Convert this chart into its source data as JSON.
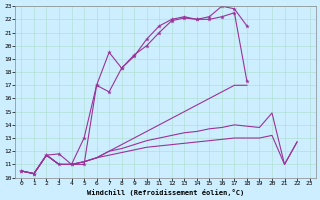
{
  "xlabel": "Windchill (Refroidissement éolien,°C)",
  "background_color": "#cceeff",
  "line_color": "#993399",
  "xlim": [
    -0.5,
    23.5
  ],
  "ylim": [
    10,
    23
  ],
  "xticks": [
    0,
    1,
    2,
    3,
    4,
    5,
    6,
    7,
    8,
    9,
    10,
    11,
    12,
    13,
    14,
    15,
    16,
    17,
    18,
    19,
    20,
    21,
    22,
    23
  ],
  "yticks": [
    10,
    11,
    12,
    13,
    14,
    15,
    16,
    17,
    18,
    19,
    20,
    21,
    22,
    23
  ],
  "series_marked": [
    {
      "x": [
        0,
        1,
        2,
        3,
        4,
        5,
        6,
        7,
        8,
        9,
        10,
        11,
        12,
        13,
        14,
        15,
        16,
        17,
        18
      ],
      "y": [
        10.5,
        10.3,
        11.7,
        11.8,
        11.0,
        11.0,
        17.0,
        19.5,
        18.3,
        19.3,
        20.0,
        21.0,
        21.9,
        22.1,
        22.0,
        22.2,
        23.0,
        22.8,
        21.5
      ]
    },
    {
      "x": [
        0,
        1,
        2,
        3,
        4,
        5,
        6,
        7,
        8,
        9,
        10,
        11,
        12,
        13,
        14,
        15,
        16,
        17,
        18
      ],
      "y": [
        10.5,
        10.3,
        11.7,
        11.0,
        11.0,
        13.0,
        17.0,
        16.5,
        18.3,
        19.2,
        20.5,
        21.5,
        22.0,
        22.2,
        22.0,
        22.0,
        22.2,
        22.5,
        17.3
      ]
    }
  ],
  "series_plain": [
    {
      "x": [
        0,
        1,
        2,
        3,
        4,
        5,
        6,
        7,
        8,
        9,
        10,
        11,
        12,
        13,
        14,
        15,
        16,
        17,
        18
      ],
      "y": [
        10.5,
        10.3,
        11.7,
        11.0,
        11.0,
        11.2,
        11.5,
        12.0,
        12.5,
        13.0,
        13.5,
        14.0,
        14.5,
        15.0,
        15.5,
        16.0,
        16.5,
        17.0,
        17.0
      ]
    },
    {
      "x": [
        0,
        1,
        2,
        3,
        4,
        5,
        6,
        7,
        8,
        9,
        10,
        11,
        12,
        13,
        14,
        15,
        16,
        17,
        18,
        19,
        20,
        21,
        22
      ],
      "y": [
        10.5,
        10.3,
        11.7,
        11.0,
        11.0,
        11.2,
        11.5,
        12.0,
        12.2,
        12.5,
        12.8,
        13.0,
        13.2,
        13.4,
        13.5,
        13.7,
        13.8,
        14.0,
        13.9,
        13.8,
        14.9,
        11.0,
        12.7
      ]
    },
    {
      "x": [
        0,
        1,
        2,
        3,
        4,
        5,
        6,
        7,
        8,
        9,
        10,
        11,
        12,
        13,
        14,
        15,
        16,
        17,
        18,
        19,
        20,
        21,
        22
      ],
      "y": [
        10.5,
        10.3,
        11.7,
        11.0,
        11.0,
        11.2,
        11.5,
        11.7,
        11.9,
        12.1,
        12.3,
        12.4,
        12.5,
        12.6,
        12.7,
        12.8,
        12.9,
        13.0,
        13.0,
        13.0,
        13.2,
        11.0,
        12.7
      ]
    }
  ]
}
